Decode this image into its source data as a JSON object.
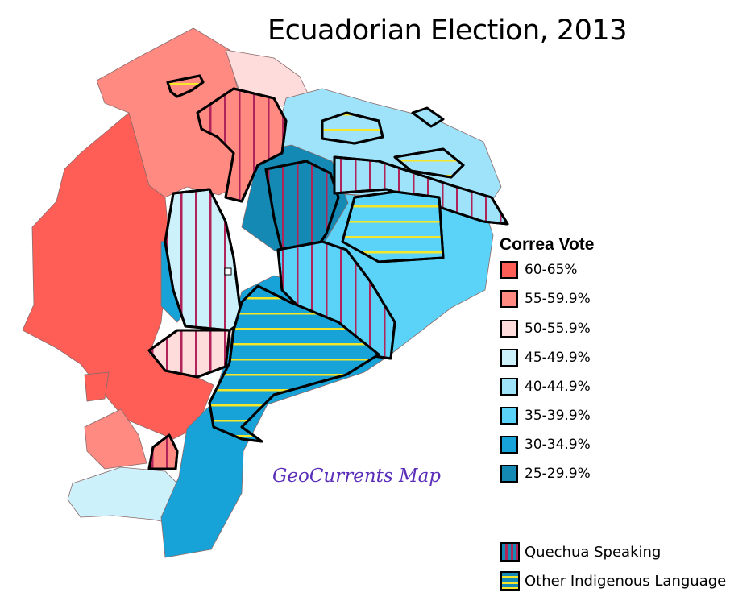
{
  "title": "Ecuadorian Election, 2013",
  "watermark": "GeoCurrents Map",
  "legend": {
    "title": "Correa Vote",
    "items": [
      {
        "label": "60-65%",
        "color": "#ff5e57"
      },
      {
        "label": "55-59.9%",
        "color": "#ff8a82"
      },
      {
        "label": "50-55.9%",
        "color": "#ffdcdc"
      },
      {
        "label": "45-49.9%",
        "color": "#cdf1fb"
      },
      {
        "label": "40-44.9%",
        "color": "#9ee3fa"
      },
      {
        "label": "35-39.9%",
        "color": "#5bd3f8"
      },
      {
        "label": "30-34.9%",
        "color": "#17a3d8"
      },
      {
        "label": "25-29.9%",
        "color": "#1389b4"
      }
    ],
    "patterns": [
      {
        "label": "Quechua Speaking",
        "line_color": "#b0245a"
      },
      {
        "label": "Other Indigenous Language",
        "line_color": "#f5e62a"
      }
    ]
  }
}
